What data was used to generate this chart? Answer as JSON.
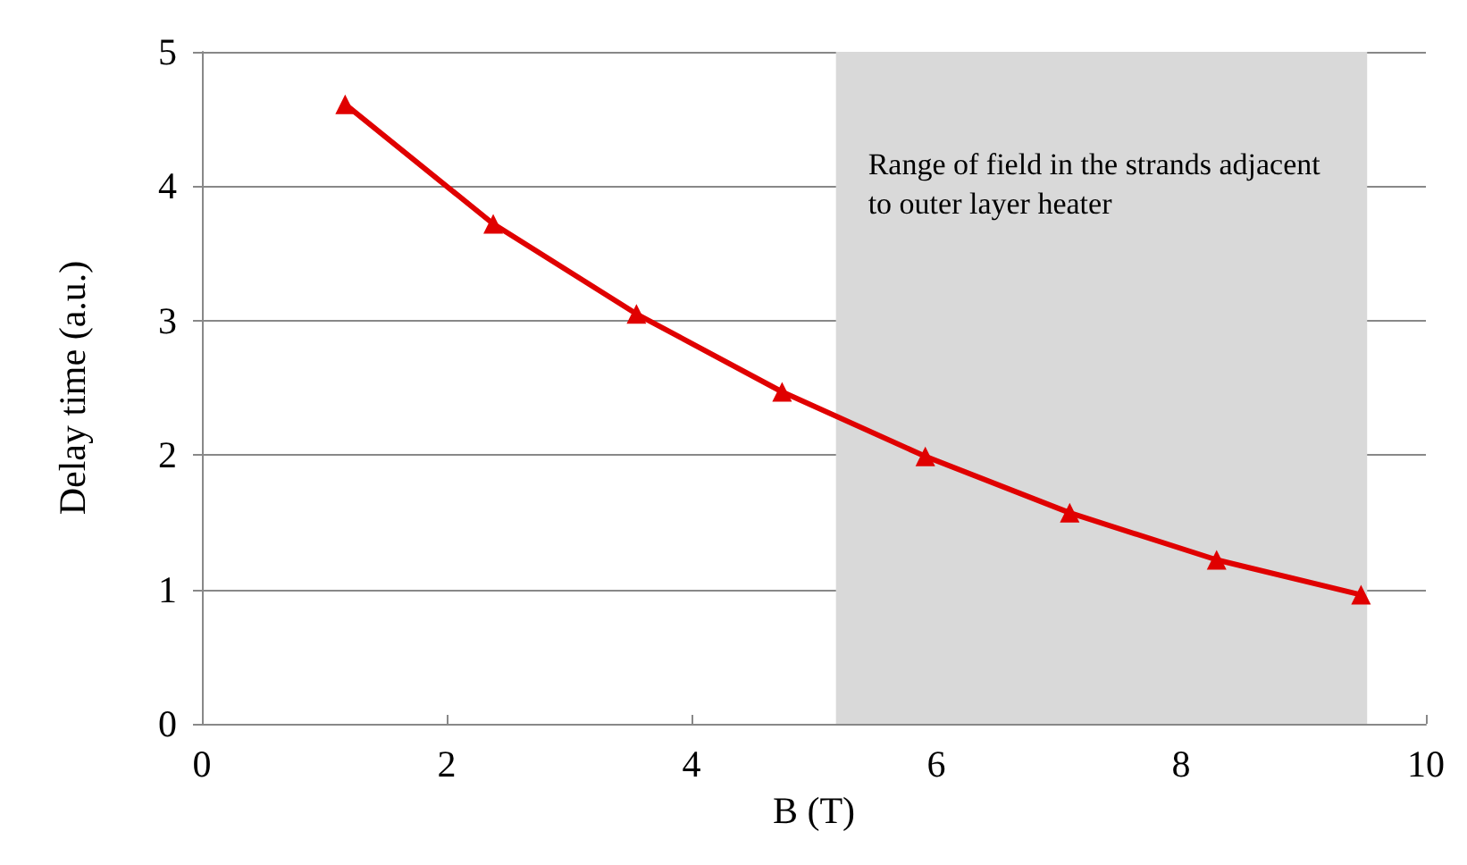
{
  "chart_data": {
    "type": "line",
    "xlabel": "B (T)",
    "ylabel": "Delay time (a.u.)",
    "x": [
      1.17,
      2.38,
      3.55,
      4.74,
      5.91,
      7.09,
      8.29,
      9.47
    ],
    "series": [
      {
        "color": "#e00000",
        "values": [
          4.61,
          3.72,
          3.05,
          2.47,
          1.99,
          1.57,
          1.22,
          0.96
        ]
      }
    ],
    "xlim": [
      0,
      10
    ],
    "xticks": [
      0,
      2,
      4,
      6,
      8,
      10
    ],
    "ylim": [
      0,
      5
    ],
    "yticks": [
      0,
      1,
      2,
      3,
      4,
      5
    ],
    "grid": "y",
    "marker": "triangle",
    "line_style": "solid",
    "bands": [
      {
        "axis": "x",
        "from": 5.18,
        "to": 9.52,
        "label": "Range of field in the strands adjacent to outer layer heater",
        "color": "#d9d9d9"
      }
    ]
  }
}
